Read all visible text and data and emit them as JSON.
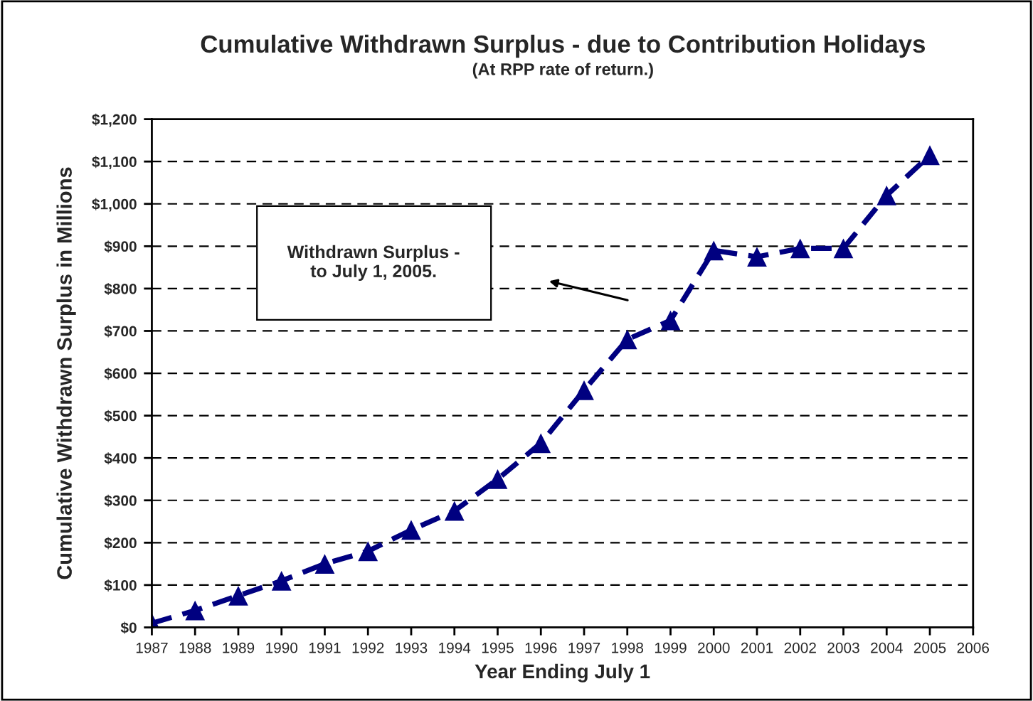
{
  "chart_data": {
    "type": "line",
    "title": "Cumulative Withdrawn Surplus - due to Contribution Holidays",
    "subtitle": "(At RPP rate of return.)",
    "xlabel": "Year Ending July 1",
    "ylabel": "Cumulative Withdrawn Surplus in Millions",
    "x": [
      1987,
      1988,
      1989,
      1990,
      1991,
      1992,
      1993,
      1994,
      1995,
      1996,
      1997,
      1998,
      1999,
      2000,
      2001,
      2002,
      2003,
      2004,
      2005
    ],
    "series": [
      {
        "color": "#000080",
        "values": [
          10,
          40,
          75,
          110,
          150,
          180,
          230,
          275,
          350,
          435,
          560,
          680,
          725,
          890,
          875,
          895,
          895,
          1020,
          1115
        ]
      }
    ],
    "xlim": [
      1987,
      2006
    ],
    "xticks": [
      1987,
      1988,
      1989,
      1990,
      1991,
      1992,
      1993,
      1994,
      1995,
      1996,
      1997,
      1998,
      1999,
      2000,
      2001,
      2002,
      2003,
      2004,
      2005,
      2006
    ],
    "ylim": [
      0,
      1200
    ],
    "yticks": [
      {
        "value": 0,
        "label": "$0"
      },
      {
        "value": 100,
        "label": "$100"
      },
      {
        "value": 200,
        "label": "$200"
      },
      {
        "value": 300,
        "label": "$300"
      },
      {
        "value": 400,
        "label": "$400"
      },
      {
        "value": 500,
        "label": "$500"
      },
      {
        "value": 600,
        "label": "$600"
      },
      {
        "value": 700,
        "label": "$700"
      },
      {
        "value": 800,
        "label": "$800"
      },
      {
        "value": 900,
        "label": "$900"
      },
      {
        "value": 1000,
        "label": "$1,000"
      },
      {
        "value": 1100,
        "label": "$1,100"
      },
      {
        "value": 1200,
        "label": "$1,200"
      }
    ],
    "grid": "y",
    "legend": false,
    "marker": "triangle",
    "line_style": "dashed",
    "annotations": [
      "Withdrawn Surplus -\nto July 1, 2005."
    ]
  }
}
